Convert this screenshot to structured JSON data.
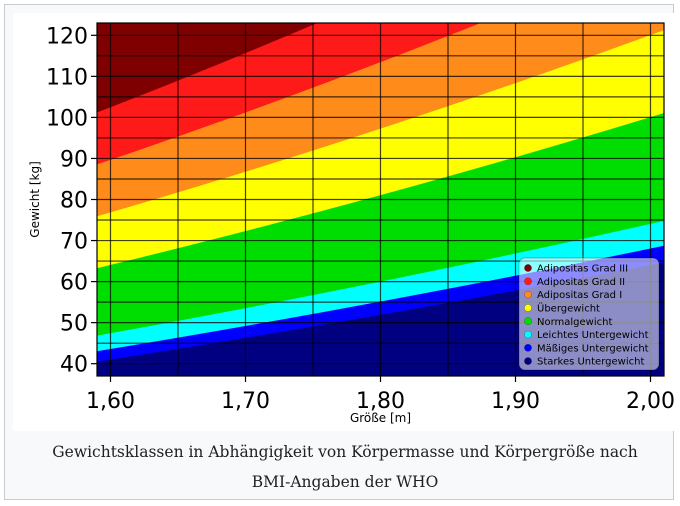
{
  "caption": {
    "line1": "Gewichtsklassen in Abhängigkeit von Körpermasse und Körpergröße nach",
    "line2": "BMI-Angaben der WHO"
  },
  "chart_data": {
    "type": "area",
    "title": "",
    "xlabel": "Größe [m]",
    "ylabel": "Gewicht [kg]",
    "xlim": [
      1.59,
      2.01
    ],
    "ylim": [
      37,
      123
    ],
    "x_ticks": [
      1.6,
      1.7,
      1.8,
      1.9,
      2.0
    ],
    "x_tick_labels": [
      "1,60",
      "1,70",
      "1,80",
      "1,90",
      "2,00"
    ],
    "y_ticks": [
      40,
      50,
      60,
      70,
      80,
      90,
      100,
      110,
      120
    ],
    "y_tick_labels": [
      "40",
      "50",
      "60",
      "70",
      "80",
      "90",
      "100",
      "110",
      "120"
    ],
    "grid": true,
    "legend_position": "bottom-right",
    "bmi_boundaries": [
      16,
      17,
      18.5,
      25,
      30,
      35,
      40
    ],
    "series": [
      {
        "name": "Adipositas Grad III",
        "bmi_min": 40,
        "bmi_max": null,
        "color": "#7f0000"
      },
      {
        "name": "Adipositas Grad II",
        "bmi_min": 35,
        "bmi_max": 40,
        "color": "#ff1a1a"
      },
      {
        "name": "Adipositas Grad I",
        "bmi_min": 30,
        "bmi_max": 35,
        "color": "#ff8c1a"
      },
      {
        "name": "Übergewicht",
        "bmi_min": 25,
        "bmi_max": 30,
        "color": "#ffff00"
      },
      {
        "name": "Normalgewicht",
        "bmi_min": 18.5,
        "bmi_max": 25,
        "color": "#00dd00"
      },
      {
        "name": "Leichtes Untergewicht",
        "bmi_min": 17,
        "bmi_max": 18.5,
        "color": "#00ffff"
      },
      {
        "name": "Mäßiges Untergewicht",
        "bmi_min": 16,
        "bmi_max": 17,
        "color": "#0000ff"
      },
      {
        "name": "Starkes Untergewicht",
        "bmi_min": null,
        "bmi_max": 16,
        "color": "#000080"
      }
    ]
  }
}
